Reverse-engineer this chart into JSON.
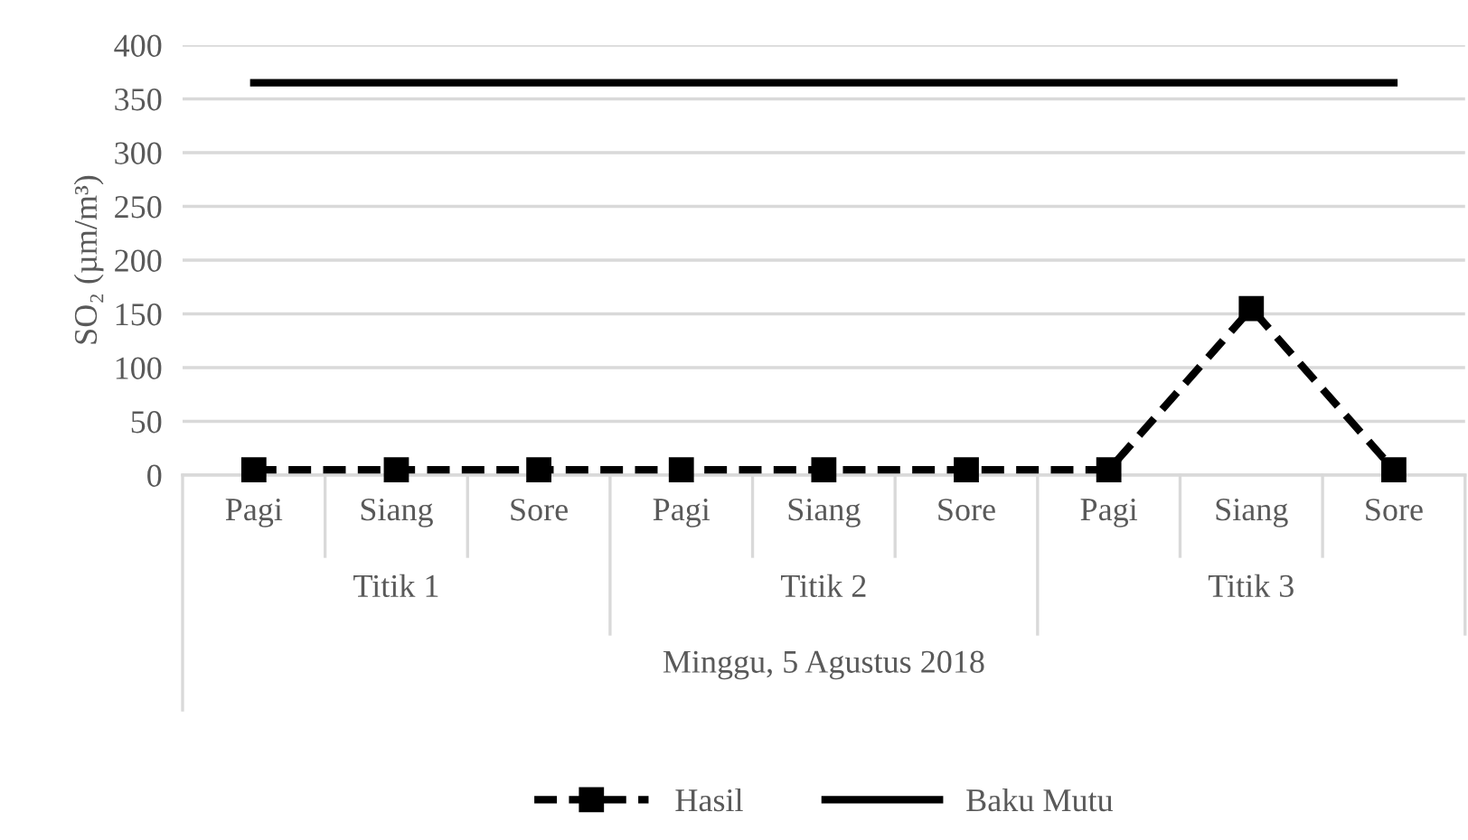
{
  "chart_data": {
    "type": "line",
    "ylabel": "SO₂ (µm/m³)",
    "xlabel": "Minggu, 5 Agustus 2018",
    "categories": [
      "Pagi",
      "Siang",
      "Sore",
      "Pagi",
      "Siang",
      "Sore",
      "Pagi",
      "Siang",
      "Sore"
    ],
    "annotations": [
      "Titik 1",
      "Titik 2",
      "Titik 3"
    ],
    "series": [
      {
        "name": "Hasil",
        "color": "#000000",
        "values": [
          5,
          5,
          5,
          5,
          5,
          5,
          5,
          155,
          5
        ],
        "marker": "square",
        "line_style": "dashed"
      },
      {
        "name": "Baku Mutu",
        "color": "#000000",
        "values": [
          365,
          365,
          365,
          365,
          365,
          365,
          365,
          365,
          365
        ],
        "marker": "none",
        "line_style": "solid"
      }
    ],
    "ylim": [
      0,
      400
    ],
    "yticks": [
      0,
      50,
      100,
      150,
      200,
      250,
      300,
      350,
      400
    ],
    "grid": "y",
    "legend": "bottom"
  }
}
